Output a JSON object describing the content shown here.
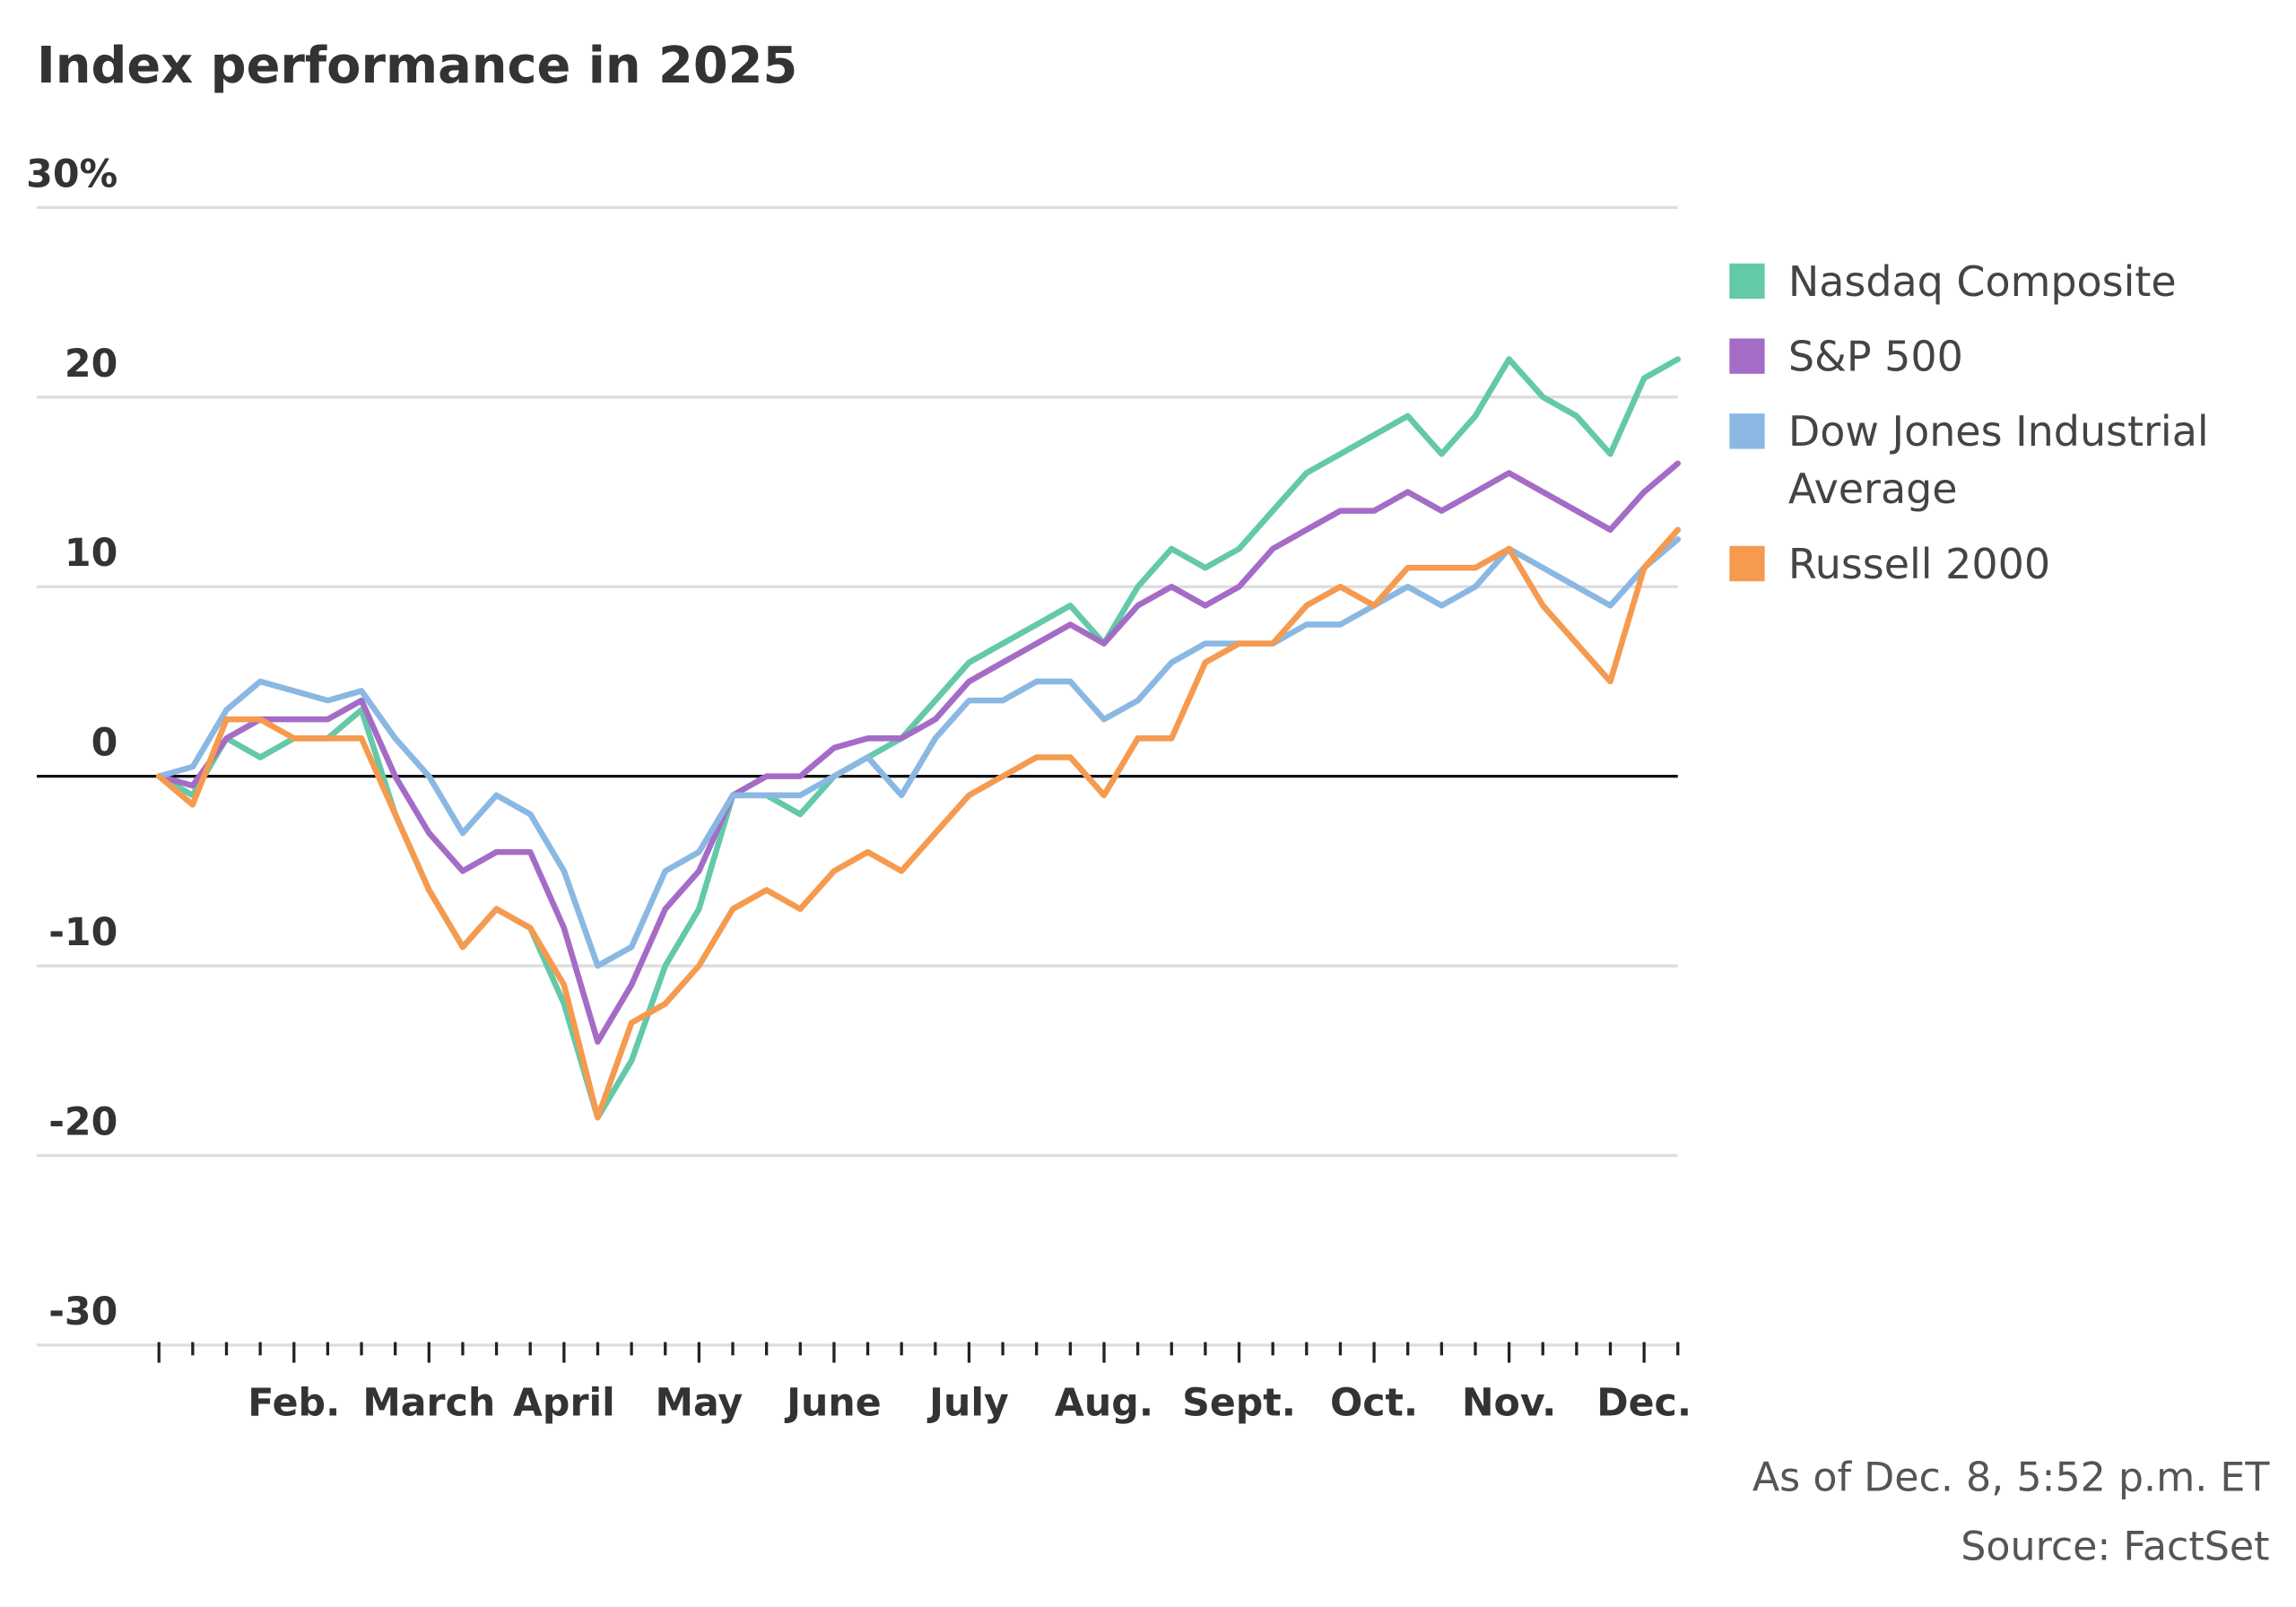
{
  "chart_data": {
    "type": "line",
    "title": "Index performance in 2025",
    "note": "As of Dec. 8, 5:52 p.m. ET",
    "source": "Source: FactSet",
    "categories": [
      null,
      null,
      null,
      null,
      "Feb.",
      null,
      null,
      null,
      "March",
      null,
      null,
      null,
      "April",
      null,
      null,
      null,
      "May",
      null,
      null,
      null,
      "June",
      null,
      null,
      null,
      "July",
      null,
      null,
      null,
      "Aug.",
      null,
      null,
      null,
      "Sept.",
      null,
      null,
      null,
      "Oct.",
      null,
      null,
      null,
      "Nov.",
      null,
      null,
      null,
      "Dec.",
      null
    ],
    "series": [
      {
        "name": "Nasdaq Composite",
        "color": "#63c9a8",
        "values": [
          0,
          -1,
          2,
          1,
          2,
          2,
          3.5,
          -2,
          -6,
          -9,
          -7,
          -8,
          -12,
          -18,
          -15,
          -10,
          -7,
          -1,
          -1,
          -2,
          0,
          1,
          2,
          4,
          6,
          7,
          8,
          9,
          7,
          10,
          12,
          11,
          12,
          14,
          16,
          17,
          18,
          19,
          17,
          19,
          22,
          20,
          19,
          17,
          21,
          22
        ]
      },
      {
        "name": "S&P 500",
        "color": "#a46cc6",
        "values": [
          0,
          -0.5,
          2,
          3,
          3,
          3,
          4,
          0,
          -3,
          -5,
          -4,
          -4,
          -8,
          -14,
          -11,
          -7,
          -5,
          -1,
          0,
          0,
          1.5,
          2,
          2,
          3,
          5,
          6,
          7,
          8,
          7,
          9,
          10,
          9,
          10,
          12,
          13,
          14,
          14,
          15,
          14,
          15,
          16,
          15,
          14,
          13,
          15,
          16.5
        ]
      },
      {
        "name": "Dow Jones Industrial Average",
        "color": "#8ab8e3",
        "values": [
          0,
          0.5,
          3.5,
          5,
          4.5,
          4,
          4.5,
          2,
          0,
          -3,
          -1,
          -2,
          -5,
          -10,
          -9,
          -5,
          -4,
          -1,
          -1,
          -1,
          0,
          1,
          -1,
          2,
          4,
          4,
          5,
          5,
          3,
          4,
          6,
          7,
          7,
          7,
          8,
          8,
          9,
          10,
          9,
          10,
          12,
          11,
          10,
          9,
          11,
          12.5
        ]
      },
      {
        "name": "Russell 2000",
        "color": "#f59a4e",
        "values": [
          0,
          -1.5,
          3,
          3,
          2,
          2,
          2,
          -2,
          -6,
          -9,
          -7,
          -8,
          -11,
          -18,
          -13,
          -12,
          -10,
          -7,
          -6,
          -7,
          -5,
          -4,
          -5,
          -3,
          -1,
          0,
          1,
          1,
          -1,
          2,
          2,
          6,
          7,
          7,
          9,
          10,
          9,
          11,
          11,
          11,
          12,
          9,
          7,
          5,
          11,
          13
        ]
      }
    ],
    "ylim": [
      -30,
      30
    ],
    "yticks": [
      {
        "value": 30,
        "label": "30%"
      },
      20,
      10,
      0,
      -10,
      -20,
      -30
    ],
    "grid": true,
    "legend": "right"
  }
}
